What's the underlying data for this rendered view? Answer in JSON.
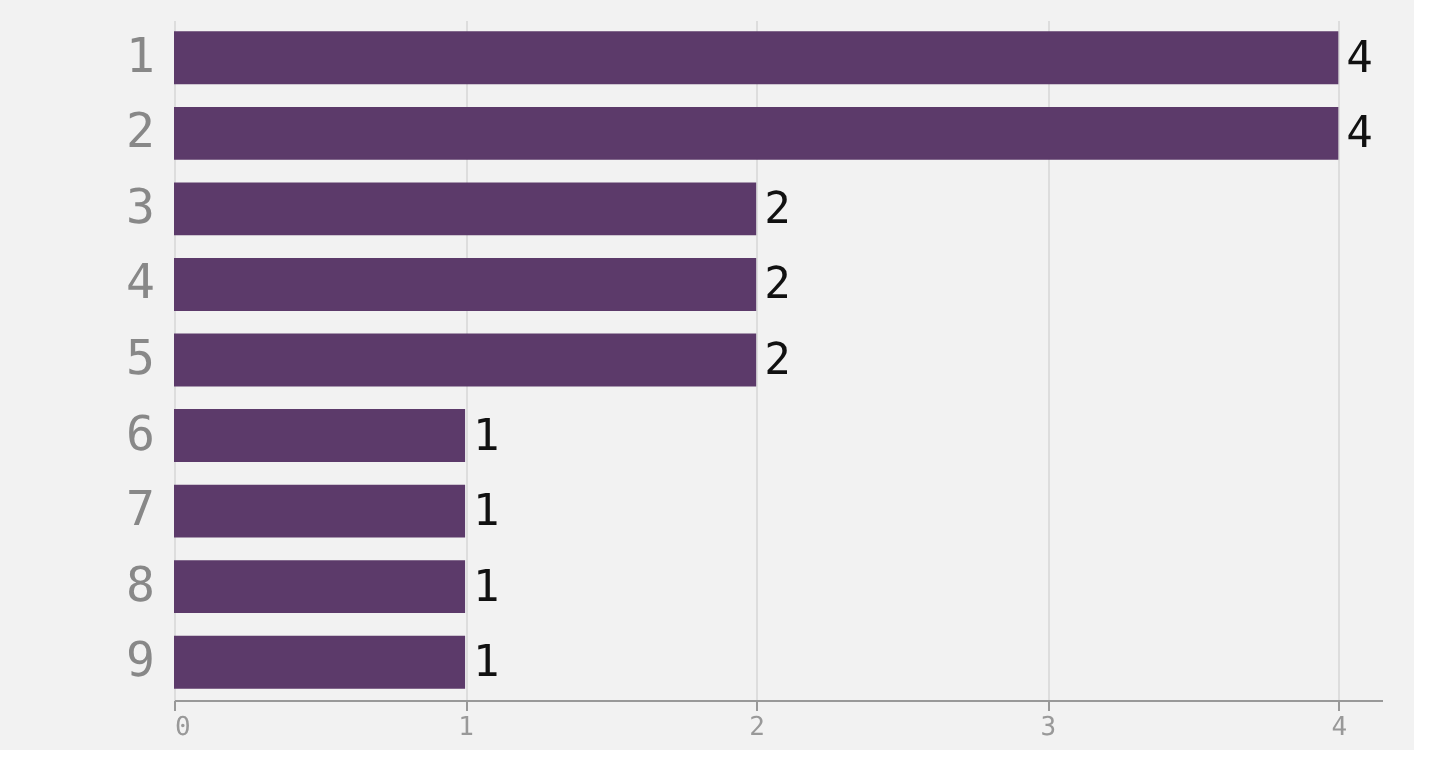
{
  "chart_data": {
    "type": "bar",
    "orientation": "horizontal",
    "categories": [
      "1",
      "2",
      "3",
      "4",
      "5",
      "6",
      "7",
      "8",
      "9"
    ],
    "values": [
      4,
      4,
      2,
      2,
      2,
      1,
      1,
      1,
      1
    ],
    "color": "#5c3a6a",
    "xlim": [
      0,
      4.15
    ],
    "xticks": [
      0,
      1,
      2,
      3,
      4
    ],
    "grid": "x",
    "data_labels": true
  }
}
